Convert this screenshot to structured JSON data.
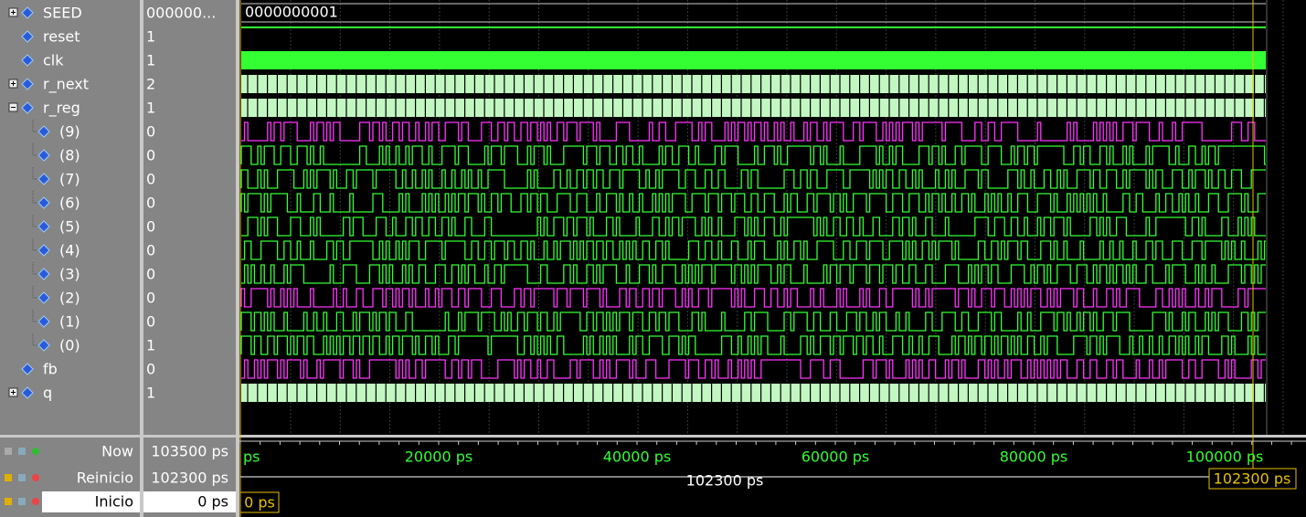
{
  "signals": [
    {
      "name": "SEED",
      "value": "000000...",
      "wave_label": "0000000001"
    },
    {
      "name": "reset",
      "value": "1"
    },
    {
      "name": "clk",
      "value": "1"
    },
    {
      "name": "r_next",
      "value": "2"
    },
    {
      "name": "r_reg",
      "value": "1"
    },
    {
      "name": "(9)",
      "value": "0"
    },
    {
      "name": "(8)",
      "value": "0"
    },
    {
      "name": "(7)",
      "value": "0"
    },
    {
      "name": "(6)",
      "value": "0"
    },
    {
      "name": "(5)",
      "value": "0"
    },
    {
      "name": "(4)",
      "value": "0"
    },
    {
      "name": "(3)",
      "value": "0"
    },
    {
      "name": "(2)",
      "value": "0"
    },
    {
      "name": "(1)",
      "value": "0"
    },
    {
      "name": "(0)",
      "value": "1"
    },
    {
      "name": "fb",
      "value": "0"
    },
    {
      "name": "q",
      "value": "1"
    }
  ],
  "cursors": [
    {
      "name": "Now",
      "value": "103500 ps"
    },
    {
      "name": "Reinicio",
      "value": "102300 ps"
    },
    {
      "name": "Inicio",
      "value": "0 ps"
    }
  ],
  "time_axis": [
    "ps",
    "20000 ps",
    "40000 ps",
    "60000 ps",
    "80000 ps",
    "100000 ps"
  ],
  "cursor_delta": "102300 ps",
  "cursor_flags": [
    "102300 ps",
    "0 ps"
  ]
}
